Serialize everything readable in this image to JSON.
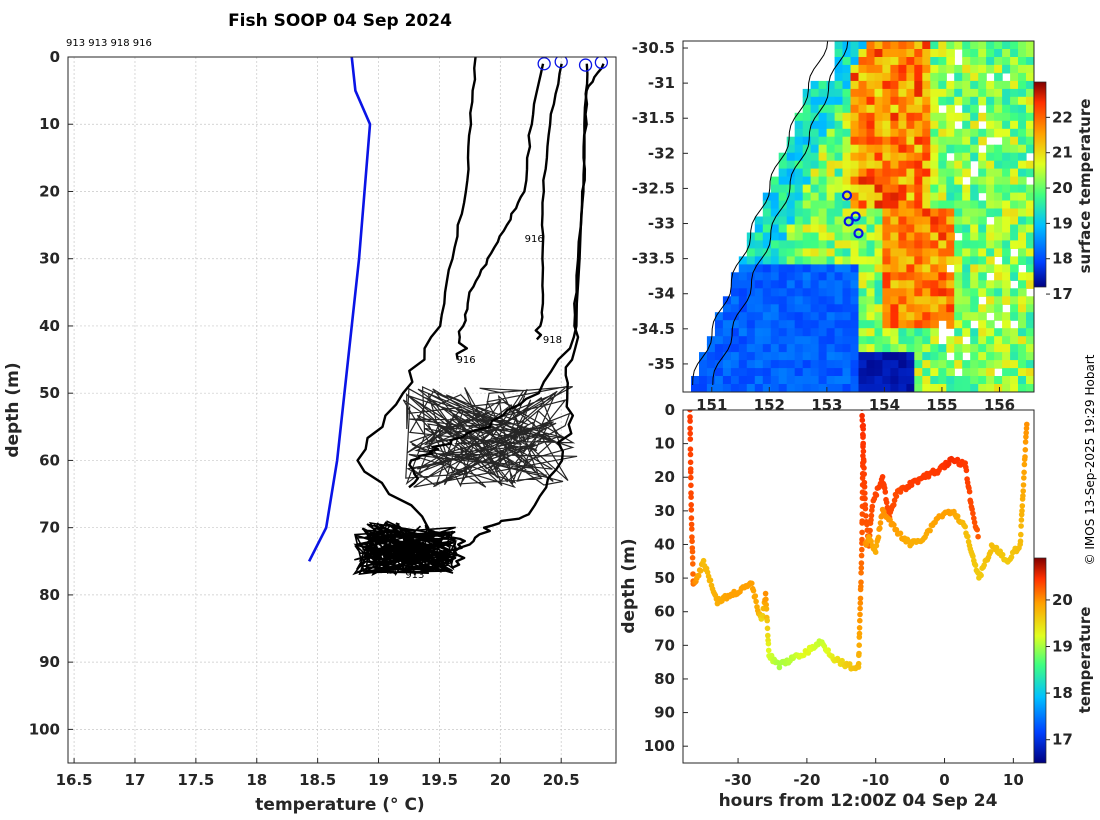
{
  "title": "Fish SOOP 04 Sep 2024",
  "platform_ids": "913 913 918 916",
  "credit": "© IMOS 13-Sep-2025 19:29 Hobart",
  "chart_data": [
    {
      "type": "line",
      "name": "profiles",
      "xlabel": "temperature (° C)",
      "ylabel": "depth (m)",
      "xlim": [
        16.45,
        20.95
      ],
      "ylim": [
        105,
        0
      ],
      "xticks": [
        "16.5",
        "17",
        "17.5",
        "18",
        "18.5",
        "19",
        "19.5",
        "20",
        "20.5"
      ],
      "xtick_values": [
        16.5,
        17,
        17.5,
        18,
        18.5,
        19,
        19.5,
        20,
        20.5
      ],
      "yticks": [
        "0",
        "10",
        "20",
        "30",
        "40",
        "50",
        "60",
        "70",
        "80",
        "90",
        "100"
      ],
      "ytick_values": [
        0,
        10,
        20,
        30,
        40,
        50,
        60,
        70,
        80,
        90,
        100
      ],
      "grid": true,
      "climatology": {
        "color": "#0a14e6",
        "temperature": [
          18.78,
          18.81,
          18.93,
          18.84,
          18.75,
          18.66,
          18.57,
          18.43
        ],
        "depth": [
          0,
          5,
          10,
          30,
          45,
          60,
          70,
          75
        ]
      },
      "profiles": [
        {
          "id": "913a",
          "color": "#000000",
          "temperature": [
            19.8,
            19.75,
            19.72,
            19.6,
            19.5,
            19.2,
            18.85,
            19.4,
            19.7,
            19.55,
            19.3
          ],
          "depth": [
            0,
            10,
            20,
            30,
            40,
            50,
            60,
            70,
            72,
            75,
            77
          ]
        },
        {
          "id": "913b",
          "color": "#000000",
          "temperature": [
            20.72,
            20.7,
            20.68,
            20.62,
            20.6,
            20.58,
            20.5,
            20.2,
            19.9,
            19.7,
            19.6
          ],
          "depth": [
            1,
            10,
            20,
            35,
            45,
            52,
            60,
            68,
            70,
            73,
            76
          ]
        },
        {
          "id": "918",
          "color": "#000000",
          "temperature": [
            20.5,
            20.4,
            20.35,
            20.34,
            20.35,
            20.3
          ],
          "depth": [
            1,
            10,
            20,
            30,
            38,
            42
          ]
        },
        {
          "id": "916",
          "color": "#000000",
          "temperature": [
            20.85,
            20.7,
            20.68,
            20.62,
            20.3,
            19.9,
            19.5,
            19.3,
            19.25
          ],
          "depth": [
            1,
            5,
            20,
            40,
            50,
            55,
            58,
            60,
            64
          ]
        },
        {
          "id": "916b",
          "color": "#000000",
          "temperature": [
            20.36,
            20.25,
            20.2,
            20.05,
            19.9,
            19.75,
            19.7,
            19.65
          ],
          "depth": [
            1,
            10,
            20,
            25,
            30,
            35,
            40,
            45
          ]
        }
      ],
      "surface_markers": [
        {
          "temperature": 20.36,
          "depth": 1
        },
        {
          "temperature": 20.5,
          "depth": 0.7
        },
        {
          "temperature": 20.7,
          "depth": 1.2
        },
        {
          "temperature": 20.83,
          "depth": 0.8
        }
      ],
      "annotations": [
        {
          "text": "913",
          "temperature": 19.22,
          "depth": 77.5
        },
        {
          "text": "918",
          "temperature": 20.35,
          "depth": 42.5
        },
        {
          "text": "916",
          "temperature": 19.64,
          "depth": 45.5
        },
        {
          "text": "916",
          "temperature": 20.2,
          "depth": 27.5
        }
      ]
    },
    {
      "type": "heatmap",
      "name": "sst-map",
      "xlabel": "",
      "ylabel": "",
      "xlim": [
        150.5,
        156.6
      ],
      "ylim": [
        -35.4,
        -30.4
      ],
      "xticks": [
        "151",
        "152",
        "153",
        "154",
        "155",
        "156"
      ],
      "xtick_values": [
        151,
        152,
        153,
        154,
        155,
        156
      ],
      "yticks": [
        "-30.5",
        "-31",
        "-31.5",
        "-32",
        "-32.5",
        "-33",
        "-33.5",
        "-34",
        "-34.5",
        "-35"
      ],
      "ytick_values": [
        -30.5,
        -31,
        -31.5,
        -32,
        -32.5,
        -33,
        -33.5,
        -34,
        -34.5,
        -35
      ],
      "colorbar_label": "surface temperature",
      "colorbar_ticks": [
        "17",
        "18",
        "19",
        "20",
        "21",
        "22"
      ],
      "colorbar_values": [
        17,
        18,
        19,
        20,
        21,
        22
      ],
      "colorbar_range": [
        17.2,
        23
      ],
      "station_markers": [
        {
          "lon": 153.35,
          "lat": -32.6
        },
        {
          "lon": 153.5,
          "lat": -32.9
        },
        {
          "lon": 153.38,
          "lat": -32.97
        },
        {
          "lon": 153.55,
          "lat": -33.14
        }
      ]
    },
    {
      "type": "scatter",
      "name": "depth-time",
      "xlabel": "hours from 12:00Z 04 Sep 24",
      "ylabel": "depth (m)",
      "xlim": [
        -38,
        13
      ],
      "ylim": [
        105,
        0
      ],
      "xticks": [
        "-30",
        "-20",
        "-10",
        "0",
        "10"
      ],
      "xtick_values": [
        -30,
        -20,
        -10,
        0,
        10
      ],
      "yticks": [
        "0",
        "10",
        "20",
        "30",
        "40",
        "50",
        "60",
        "70",
        "80",
        "90",
        "100"
      ],
      "ytick_values": [
        0,
        10,
        20,
        30,
        40,
        50,
        60,
        70,
        80,
        90,
        100
      ],
      "colorbar_label": "temperature",
      "colorbar_ticks": [
        "17",
        "18",
        "19",
        "20"
      ],
      "colorbar_values": [
        17,
        18,
        19,
        20
      ],
      "colorbar_range": [
        16.5,
        20.9
      ],
      "tracks": [
        {
          "name": "deep",
          "time": [
            -37,
            -36.8,
            -36.5,
            -36,
            -35,
            -33,
            -31,
            -28,
            -27,
            -26.5,
            -26,
            -25.5,
            -24,
            -22,
            -20,
            -18,
            -16,
            -14,
            -12.5,
            -12,
            -11.8
          ],
          "depth": [
            0,
            30,
            52,
            50,
            45,
            57,
            55,
            52,
            60,
            62,
            55,
            73,
            76,
            74,
            72,
            69,
            74,
            76,
            77,
            40,
            2
          ],
          "temperature": [
            20.4,
            20.3,
            20.1,
            19.8,
            19.6,
            19.7,
            19.8,
            19.8,
            19.7,
            19.4,
            19.9,
            19.1,
            18.9,
            19.0,
            19.2,
            19.0,
            19.3,
            19.5,
            19.6,
            20.2,
            20.5
          ]
        },
        {
          "name": "shallow-warm",
          "time": [
            -12,
            -11.5,
            -11,
            -10.5,
            -9,
            -8,
            -7,
            -5,
            -3,
            -1,
            1,
            3,
            4,
            5
          ],
          "depth": [
            0,
            30,
            40,
            28,
            20,
            32,
            25,
            22,
            20,
            18,
            15,
            16,
            30,
            38
          ],
          "temperature": [
            20.5,
            20.3,
            20.2,
            20.3,
            20.4,
            20.3,
            20.3,
            20.4,
            20.4,
            20.4,
            20.5,
            20.4,
            20.3,
            20.2
          ]
        },
        {
          "name": "shallow-cool",
          "time": [
            -11.5,
            -11,
            -10,
            -9,
            -7,
            -5,
            -3,
            -1,
            1,
            3,
            5,
            7,
            9,
            11,
            12
          ],
          "depth": [
            40,
            38,
            42,
            30,
            36,
            40,
            38,
            32,
            30,
            35,
            50,
            40,
            45,
            40,
            2
          ],
          "temperature": [
            19.9,
            19.8,
            19.7,
            19.9,
            19.8,
            19.7,
            19.7,
            19.8,
            19.8,
            19.6,
            19.5,
            19.6,
            19.5,
            19.6,
            19.9
          ]
        }
      ]
    }
  ]
}
